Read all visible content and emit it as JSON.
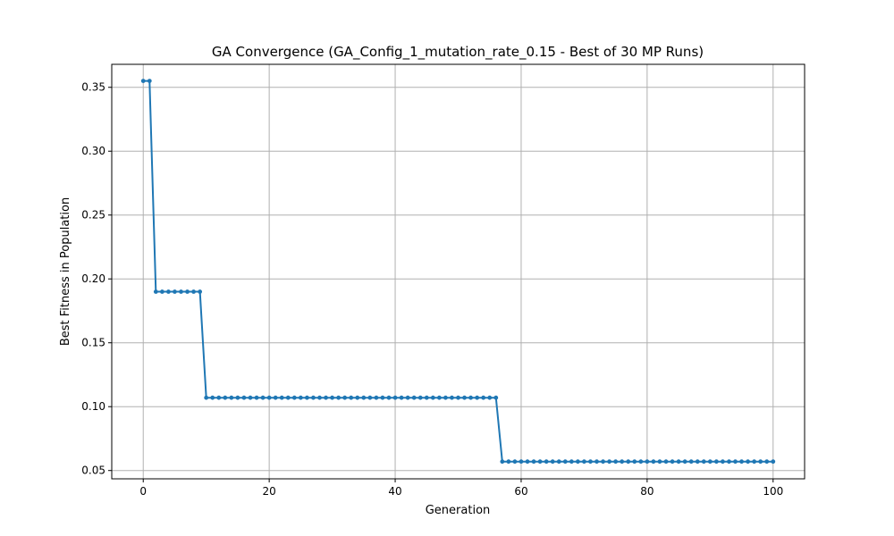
{
  "chart_data": {
    "type": "line",
    "title": "GA Convergence (GA_Config_1_mutation_rate_0.15 - Best of 30 MP Runs)",
    "xlabel": "Generation",
    "ylabel": "Best Fitness in Population",
    "xlim": [
      -5,
      105
    ],
    "ylim": [
      0.0435,
      0.368
    ],
    "xticks": [
      0,
      20,
      40,
      60,
      80,
      100
    ],
    "xtick_labels": [
      "0",
      "20",
      "40",
      "60",
      "80",
      "100"
    ],
    "yticks": [
      0.05,
      0.1,
      0.15,
      0.2,
      0.25,
      0.3,
      0.35
    ],
    "ytick_labels": [
      "0.05",
      "0.10",
      "0.15",
      "0.20",
      "0.25",
      "0.30",
      "0.35"
    ],
    "grid": true,
    "marker": "dot",
    "line_color": "#1f77b4",
    "segments": [
      {
        "from_generation": 0,
        "to_generation": 1,
        "fitness": 0.355
      },
      {
        "from_generation": 2,
        "to_generation": 9,
        "fitness": 0.19
      },
      {
        "from_generation": 10,
        "to_generation": 56,
        "fitness": 0.107
      },
      {
        "from_generation": 57,
        "to_generation": 100,
        "fitness": 0.057
      }
    ]
  }
}
